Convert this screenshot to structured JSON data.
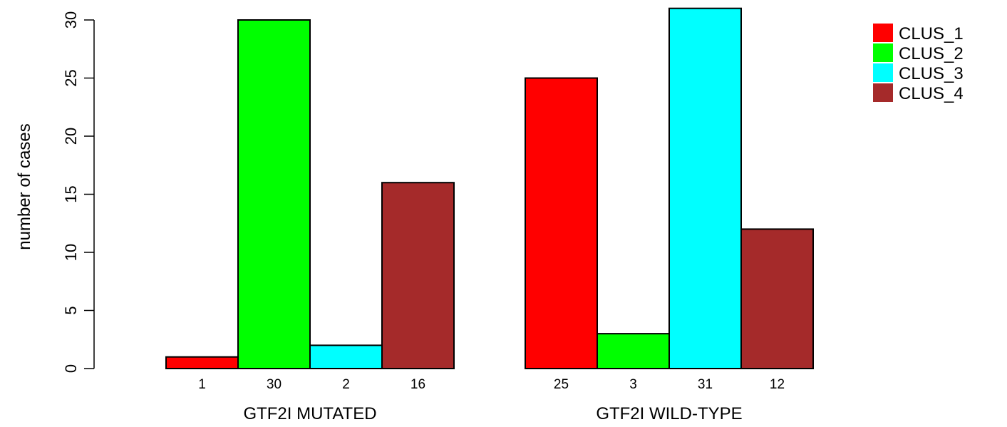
{
  "chart_data": {
    "type": "bar",
    "ylabel": "number of cases",
    "ylim": [
      0,
      30
    ],
    "yticks": [
      0,
      5,
      10,
      15,
      20,
      25,
      30
    ],
    "grid": false,
    "legend_position": "top-right",
    "groups": [
      "GTF2I MUTATED",
      "GTF2I WILD-TYPE"
    ],
    "series": [
      {
        "name": "CLUS_1",
        "color": "#ff0000",
        "values": [
          1,
          25
        ]
      },
      {
        "name": "CLUS_2",
        "color": "#00ff00",
        "values": [
          30,
          3
        ]
      },
      {
        "name": "CLUS_3",
        "color": "#00ffff",
        "values": [
          2,
          31
        ]
      },
      {
        "name": "CLUS_4",
        "color": "#a52a2a",
        "values": [
          16,
          12
        ]
      }
    ]
  }
}
